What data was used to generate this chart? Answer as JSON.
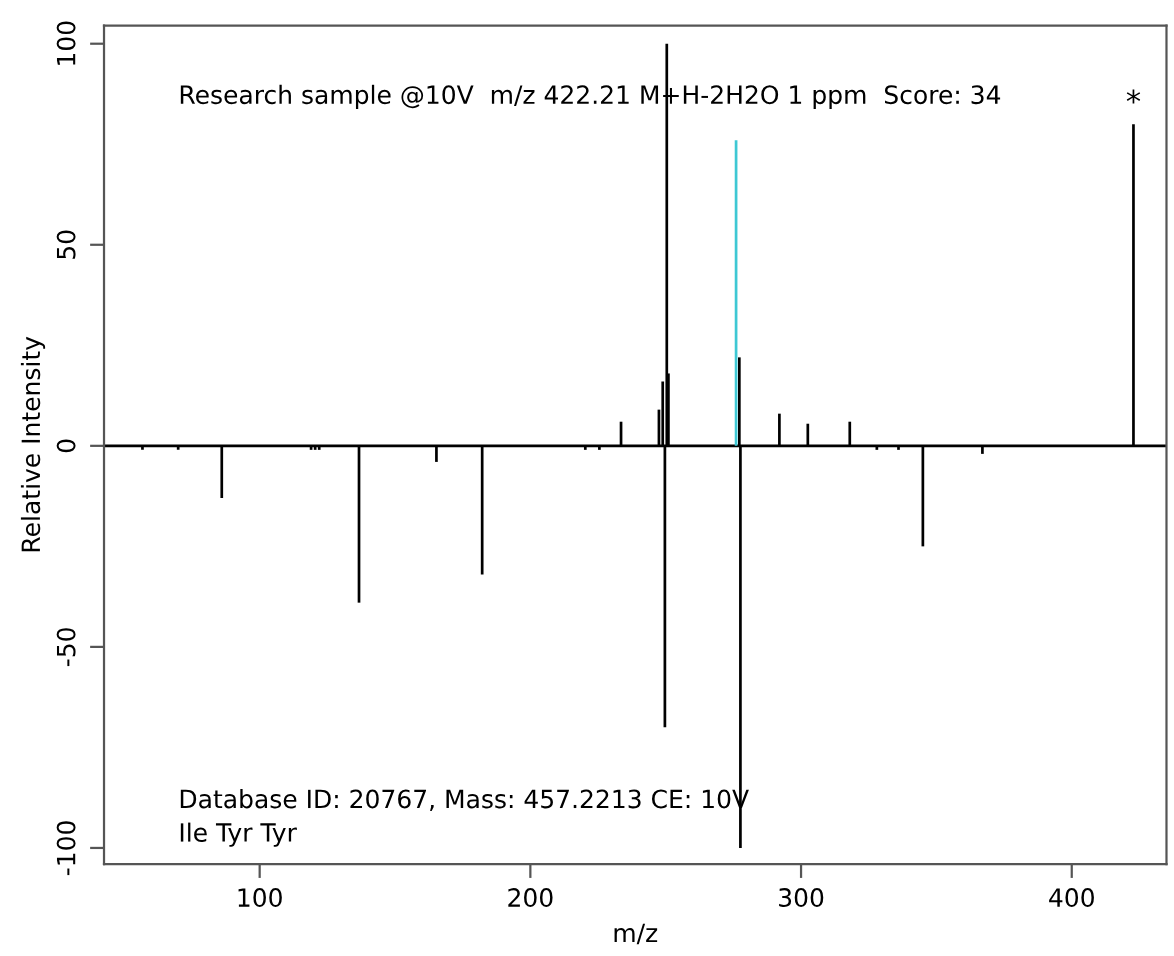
{
  "chart_data": {
    "type": "bar",
    "xlabel": "m/z",
    "ylabel": "Relative Intensity",
    "xlim": [
      42.5,
      435
    ],
    "ylim": [
      -104,
      104.5
    ],
    "xticks": [
      100,
      200,
      300,
      400
    ],
    "yticks": [
      -100,
      -50,
      0,
      50,
      100
    ],
    "series": [
      {
        "x": [
          56.7,
          69.9,
          86,
          119,
          120.5,
          122,
          136.7,
          165.3,
          182.2,
          220.3,
          225.5,
          233.5,
          247.5,
          248.9,
          249.7,
          250.4,
          251,
          276,
          277.2,
          277.6,
          292,
          302.5,
          318,
          328,
          336,
          345,
          367,
          422.8
        ],
        "values": [
          -1,
          -1,
          -13,
          -1,
          -1,
          -1,
          -39,
          -4,
          -32,
          -1,
          -1,
          6,
          9,
          16,
          -70,
          100,
          18,
          76,
          22,
          -100,
          8,
          5.5,
          6,
          -1,
          -1,
          -25,
          -2,
          80
        ],
        "colors": [
          "#000000",
          "#000000",
          "#000000",
          "#000000",
          "#000000",
          "#000000",
          "#000000",
          "#000000",
          "#000000",
          "#000000",
          "#000000",
          "#000000",
          "#000000",
          "#000000",
          "#000000",
          "#000000",
          "#000000",
          "#3ec8d4",
          "#000000",
          "#000000",
          "#000000",
          "#000000",
          "#000000",
          "#000000",
          "#000000",
          "#000000",
          "#000000",
          "#000000"
        ]
      }
    ],
    "ref_lines": [
      {
        "axis": "y",
        "value": 0,
        "color": "#000000"
      }
    ],
    "annotations": [
      {
        "text": "*",
        "x": 422.8,
        "y": 80
      },
      "Research sample @10V  m/z 422.21 M+H-2H2O 1 ppm  Score: 34",
      "Database ID: 20767, Mass: 457.2213 CE: 10V",
      "Ile Tyr Tyr"
    ],
    "grid": false,
    "legend": false
  }
}
